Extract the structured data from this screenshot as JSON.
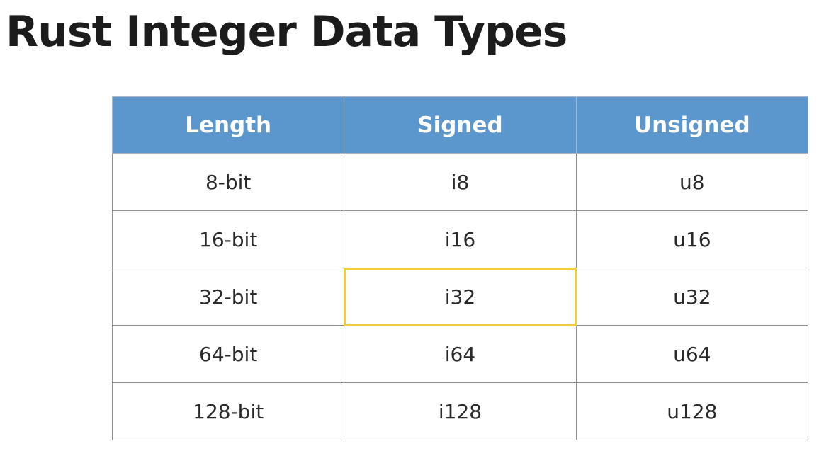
{
  "title": "Rust Integer Data Types",
  "highlight_color": "#f2cc3c",
  "header_color": "#5b97cc",
  "table": {
    "headers": [
      "Length",
      "Signed",
      "Unsigned"
    ],
    "rows": [
      [
        "8-bit",
        "i8",
        "u8"
      ],
      [
        "16-bit",
        "i16",
        "u16"
      ],
      [
        "32-bit",
        "i32",
        "u32"
      ],
      [
        "64-bit",
        "i64",
        "u64"
      ],
      [
        "128-bit",
        "i128",
        "u128"
      ]
    ],
    "highlighted_cell": "i32"
  }
}
